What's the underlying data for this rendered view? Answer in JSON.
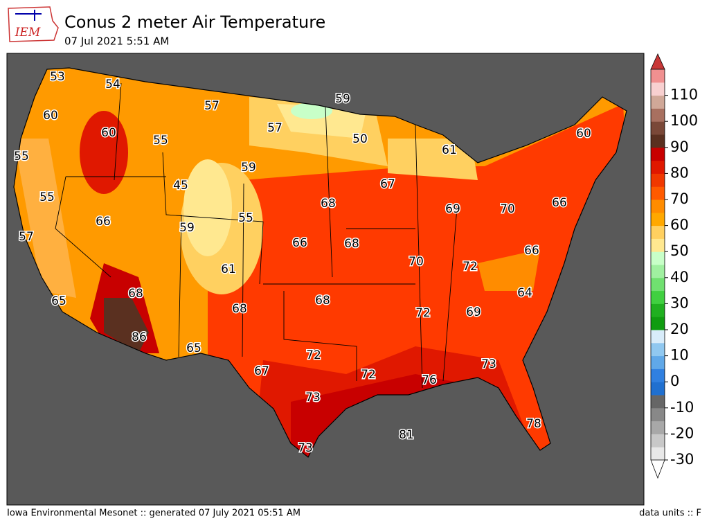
{
  "header": {
    "logo": "IEM",
    "title": "Conus 2 meter Air Temperature",
    "subtitle": "07 Jul 2021 5:51 AM"
  },
  "map": {
    "labels": [
      53,
      54,
      60,
      57,
      59,
      60,
      55,
      57,
      50,
      60,
      61,
      55,
      59,
      45,
      67,
      55,
      68,
      69,
      70,
      66,
      66,
      59,
      55,
      57,
      66,
      68,
      66,
      70,
      72,
      61,
      68,
      64,
      65,
      68,
      68,
      72,
      69,
      86,
      65,
      72,
      73,
      67,
      72,
      76,
      73,
      78,
      81,
      73
    ]
  },
  "colorbar": {
    "lim": [
      -30,
      120
    ],
    "ticks": [
      -30,
      -20,
      -10,
      0,
      10,
      20,
      30,
      40,
      50,
      60,
      70,
      80,
      90,
      100,
      110
    ],
    "colors": [
      "#e8e8e8",
      "#c8c8c8",
      "#a8a8a8",
      "#888888",
      "#666666",
      "#2070d0",
      "#3080e0",
      "#60a8e8",
      "#90c8f0",
      "#d8ecfa",
      "#109c10",
      "#20b020",
      "#40d040",
      "#70e070",
      "#a0f0a0",
      "#c8ffc8",
      "#ffe890",
      "#ffd060",
      "#ffa800",
      "#ff8c00",
      "#ff5a00",
      "#f03800",
      "#e01800",
      "#c80000",
      "#5a3020",
      "#7a4838",
      "#a87060",
      "#d0a898",
      "#f8d0d0",
      "#f09090"
    ]
  },
  "footer": {
    "left": "Iowa Environmental Mesonet :: generated 07 July 2021 05:51 AM",
    "right": "data units :: F"
  }
}
